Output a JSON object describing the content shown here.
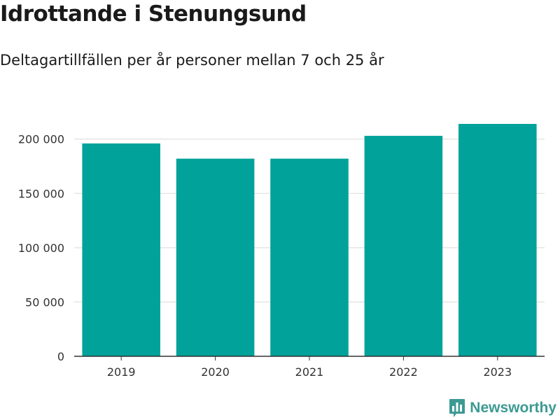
{
  "title": "Idrottande i Stenungsund",
  "subtitle": "Deltagartillfällen per år personer mellan 7 och 25 år",
  "brand": {
    "name": "Newsworthy",
    "logo_icon": "bar-chart-speech-bubble-icon",
    "color": "#3c9a93"
  },
  "colors": {
    "bar": "#00a29a",
    "grid": "#d9d9d9",
    "axis": "#333333",
    "text": "#333333"
  },
  "chart_data": {
    "type": "bar",
    "categories": [
      "2019",
      "2020",
      "2021",
      "2022",
      "2023"
    ],
    "values": [
      196000,
      182000,
      182000,
      203000,
      214000
    ],
    "ylim": [
      0,
      214000
    ],
    "yticks": [
      0,
      50000,
      100000,
      150000,
      200000
    ],
    "ytick_labels": [
      "0",
      "50 000",
      "100 000",
      "150 000",
      "200 000"
    ],
    "grid": true,
    "legend": "none"
  }
}
